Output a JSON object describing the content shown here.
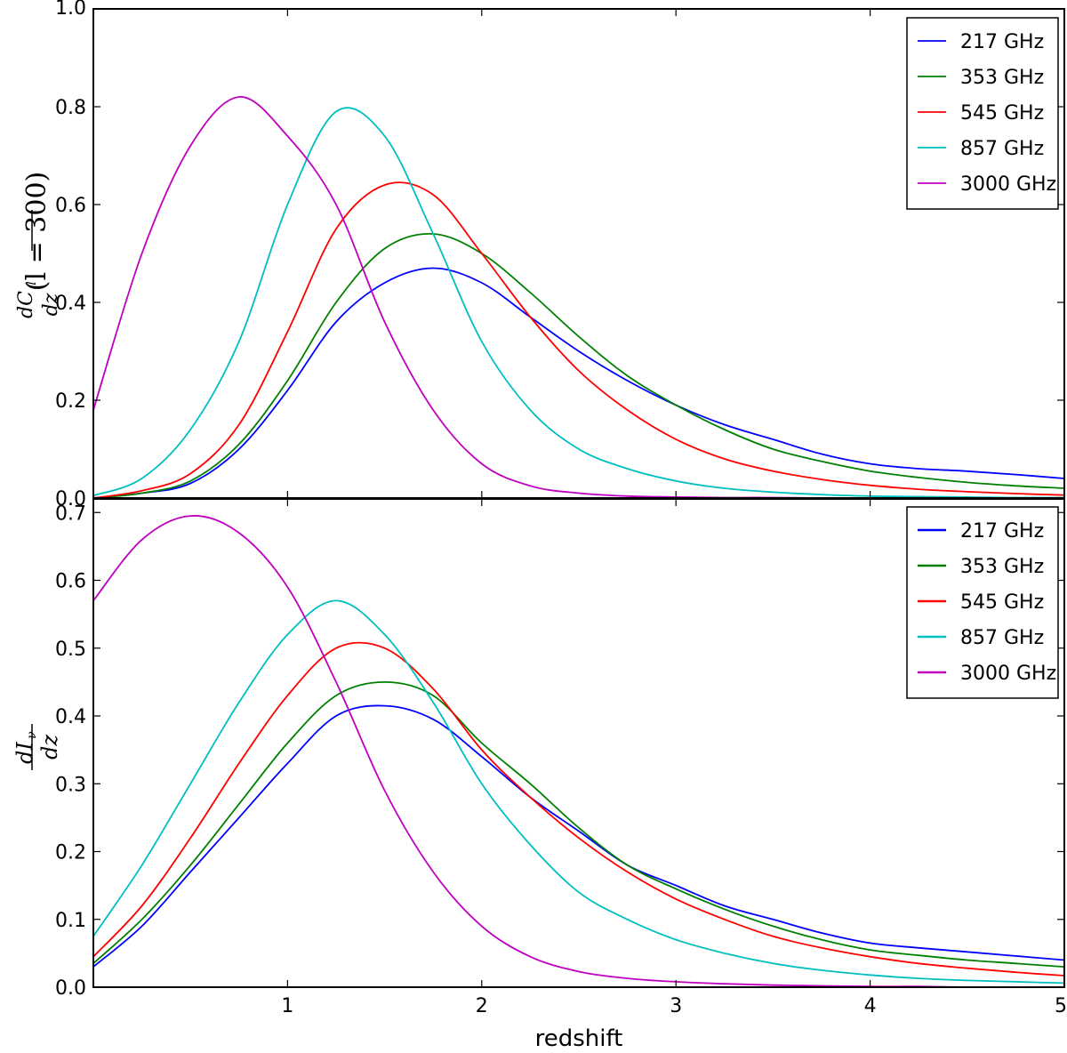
{
  "chart_data": [
    {
      "type": "line",
      "id": "top",
      "ylabel": {
        "frac_num": "dC",
        "frac_num_sub": "l",
        "frac_den": "dz",
        "suffix": "(l = 300)"
      },
      "xlabel": "",
      "xlim": [
        0,
        5
      ],
      "ylim": [
        0,
        1.0
      ],
      "yticks": [
        0.0,
        0.2,
        0.4,
        0.6,
        0.8,
        1.0
      ],
      "ytick_labels": [
        "0.0",
        "0.2",
        "0.4",
        "0.6",
        "0.8",
        "1.0"
      ],
      "xticks": [
        1,
        2,
        3,
        4,
        5
      ],
      "legend": "top-right",
      "x": [
        0,
        0.25,
        0.5,
        0.75,
        1.0,
        1.25,
        1.5,
        1.75,
        2.0,
        2.25,
        2.5,
        2.75,
        3.0,
        3.25,
        3.5,
        3.75,
        4.0,
        4.25,
        4.5,
        4.75,
        5.0
      ],
      "series": [
        {
          "name": "217 GHz",
          "color": "#0000ff",
          "values": [
            0.0,
            0.01,
            0.03,
            0.1,
            0.22,
            0.36,
            0.44,
            0.47,
            0.44,
            0.37,
            0.3,
            0.24,
            0.19,
            0.15,
            0.12,
            0.09,
            0.07,
            0.06,
            0.055,
            0.048,
            0.04
          ]
        },
        {
          "name": "353 GHz",
          "color": "#008000",
          "values": [
            0.0,
            0.01,
            0.035,
            0.11,
            0.24,
            0.4,
            0.51,
            0.54,
            0.5,
            0.42,
            0.33,
            0.25,
            0.19,
            0.14,
            0.1,
            0.075,
            0.055,
            0.042,
            0.032,
            0.025,
            0.02
          ]
        },
        {
          "name": "545 GHz",
          "color": "#ff0000",
          "values": [
            0.0,
            0.015,
            0.05,
            0.15,
            0.34,
            0.55,
            0.64,
            0.62,
            0.5,
            0.37,
            0.26,
            0.18,
            0.12,
            0.08,
            0.055,
            0.038,
            0.026,
            0.018,
            0.013,
            0.009,
            0.006
          ]
        },
        {
          "name": "857 GHz",
          "color": "#00bfbf",
          "values": [
            0.005,
            0.04,
            0.14,
            0.32,
            0.6,
            0.79,
            0.74,
            0.54,
            0.32,
            0.18,
            0.1,
            0.06,
            0.035,
            0.02,
            0.012,
            0.007,
            0.004,
            0.003,
            0.002,
            0.001,
            0.001
          ]
        },
        {
          "name": "3000 GHz",
          "color": "#bf00bf",
          "values": [
            0.18,
            0.5,
            0.72,
            0.82,
            0.74,
            0.6,
            0.36,
            0.18,
            0.07,
            0.025,
            0.01,
            0.004,
            0.002,
            0.001,
            0.001,
            0.0,
            0.0,
            0.0,
            0.0,
            0.0,
            0.0
          ]
        }
      ]
    },
    {
      "type": "line",
      "id": "bottom",
      "ylabel": {
        "frac_num": "dI",
        "frac_num_sub": "ν",
        "frac_den": "dz",
        "suffix": ""
      },
      "xlabel": "redshift",
      "xlim": [
        0,
        5
      ],
      "ylim": [
        0,
        0.72
      ],
      "yticks": [
        0.0,
        0.1,
        0.2,
        0.3,
        0.4,
        0.5,
        0.6,
        0.7
      ],
      "ytick_labels": [
        "0.0",
        "0.1",
        "0.2",
        "0.3",
        "0.4",
        "0.5",
        "0.6",
        "0.7"
      ],
      "xticks": [
        1,
        2,
        3,
        4,
        5
      ],
      "xtick_labels": [
        "1",
        "2",
        "3",
        "4",
        "5"
      ],
      "legend": "top-right",
      "x": [
        0,
        0.25,
        0.5,
        0.75,
        1.0,
        1.25,
        1.5,
        1.75,
        2.0,
        2.25,
        2.5,
        2.75,
        3.0,
        3.25,
        3.5,
        3.75,
        4.0,
        4.25,
        4.5,
        4.75,
        5.0
      ],
      "series": [
        {
          "name": "217 GHz",
          "color": "#0000ff",
          "values": [
            0.03,
            0.09,
            0.17,
            0.25,
            0.33,
            0.4,
            0.415,
            0.395,
            0.34,
            0.28,
            0.23,
            0.18,
            0.15,
            0.12,
            0.1,
            0.08,
            0.065,
            0.058,
            0.052,
            0.046,
            0.04
          ]
        },
        {
          "name": "353 GHz",
          "color": "#008000",
          "values": [
            0.035,
            0.1,
            0.18,
            0.27,
            0.36,
            0.43,
            0.45,
            0.43,
            0.36,
            0.3,
            0.235,
            0.18,
            0.145,
            0.115,
            0.09,
            0.07,
            0.055,
            0.047,
            0.04,
            0.035,
            0.03
          ]
        },
        {
          "name": "545 GHz",
          "color": "#ff0000",
          "values": [
            0.045,
            0.12,
            0.22,
            0.33,
            0.43,
            0.5,
            0.5,
            0.44,
            0.35,
            0.28,
            0.22,
            0.17,
            0.13,
            0.1,
            0.075,
            0.058,
            0.045,
            0.035,
            0.028,
            0.022,
            0.017
          ]
        },
        {
          "name": "857 GHz",
          "color": "#00bfbf",
          "values": [
            0.075,
            0.18,
            0.3,
            0.42,
            0.52,
            0.57,
            0.52,
            0.42,
            0.3,
            0.21,
            0.14,
            0.1,
            0.07,
            0.05,
            0.035,
            0.025,
            0.018,
            0.013,
            0.01,
            0.008,
            0.006
          ]
        },
        {
          "name": "3000 GHz",
          "color": "#bf00bf",
          "values": [
            0.57,
            0.66,
            0.695,
            0.67,
            0.59,
            0.45,
            0.29,
            0.17,
            0.09,
            0.045,
            0.023,
            0.013,
            0.008,
            0.005,
            0.003,
            0.002,
            0.001,
            0.001,
            0.0,
            0.0,
            0.0
          ]
        }
      ]
    }
  ]
}
